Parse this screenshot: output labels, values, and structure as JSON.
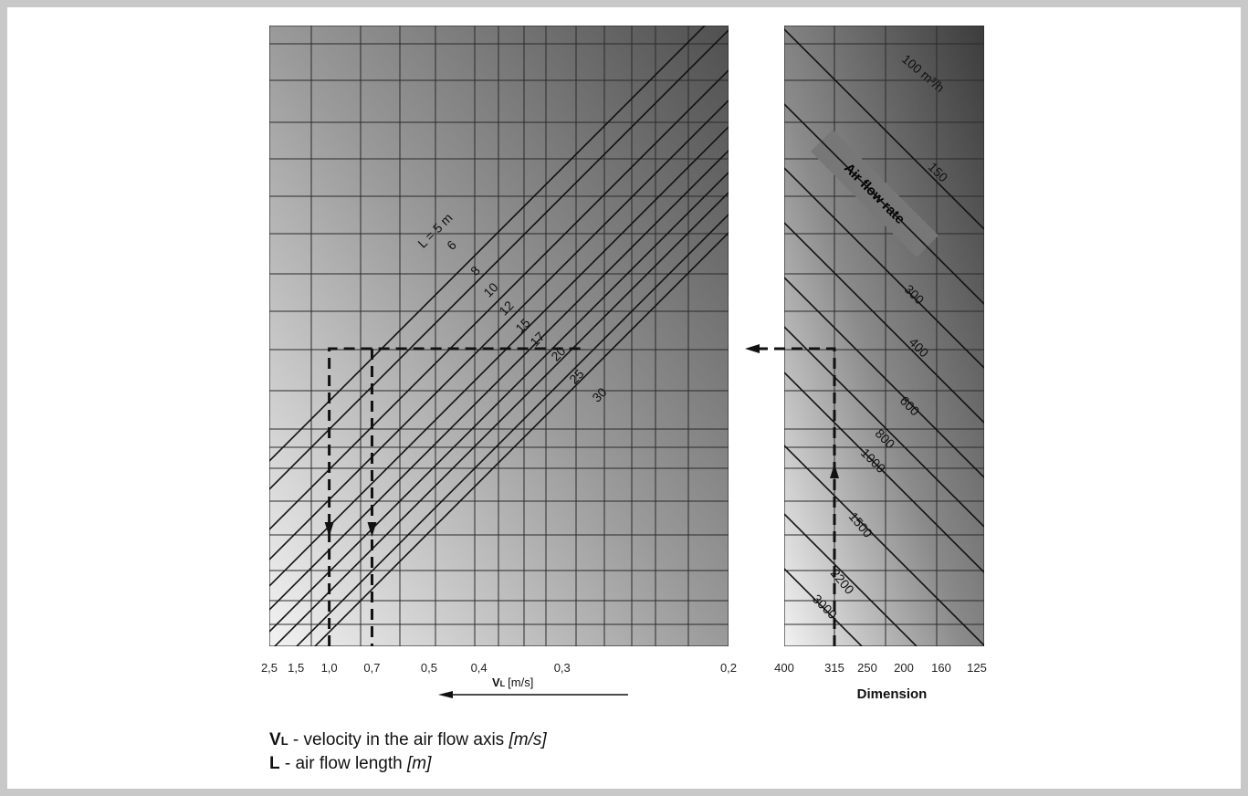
{
  "chart_data": [
    {
      "type": "line",
      "panel": "left",
      "x_ticks": [
        "2,5",
        "1,5",
        "1,0",
        "0,7",
        "0,5",
        "0,4",
        "0,3",
        "0,2"
      ],
      "xlabel_main": "V",
      "xlabel_sub": "L",
      "xlabel_unit": "[m/s]",
      "x_scale": "reciprocal",
      "xlim": [
        2.5,
        0.2
      ],
      "grid": true,
      "series": [
        {
          "name": "L = 5 m",
          "offset": 0
        },
        {
          "name": "6",
          "offset": 1
        },
        {
          "name": "8",
          "offset": 2
        },
        {
          "name": "10",
          "offset": 3
        },
        {
          "name": "12",
          "offset": 4
        },
        {
          "name": "15",
          "offset": 5
        },
        {
          "name": "17",
          "offset": 6
        },
        {
          "name": "20",
          "offset": 7
        },
        {
          "name": "25",
          "offset": 8
        },
        {
          "name": "30",
          "offset": 9
        }
      ],
      "example_reading": {
        "x_values": [
          1.0,
          0.7
        ]
      }
    },
    {
      "type": "line",
      "panel": "right",
      "x_ticks": [
        "400",
        "315",
        "250",
        "200",
        "160",
        "125"
      ],
      "xlabel": "Dimension",
      "grid": true,
      "band_label": "Air flow rate",
      "series": [
        {
          "name": "100 m³/h"
        },
        {
          "name": "150"
        },
        {
          "name": "300"
        },
        {
          "name": "400"
        },
        {
          "name": "600"
        },
        {
          "name": "800"
        },
        {
          "name": "1000"
        },
        {
          "name": "1500"
        },
        {
          "name": "2200"
        },
        {
          "name": "3000"
        }
      ],
      "example_reading": {
        "x_value": 315
      }
    }
  ],
  "legend": {
    "vl_symbol": "V",
    "vl_sub": "L",
    "vl_text": " - velocity in the air flow axis ",
    "vl_unit": "[m/s]",
    "l_symbol": "L",
    "l_text": " - air flow length ",
    "l_unit": "[m]"
  },
  "colors": {
    "page_border": "#c8c8c8",
    "panel_light": "#f2f2f2",
    "panel_dark": "#3c3c3c",
    "line": "#111111",
    "band": "#777777"
  }
}
